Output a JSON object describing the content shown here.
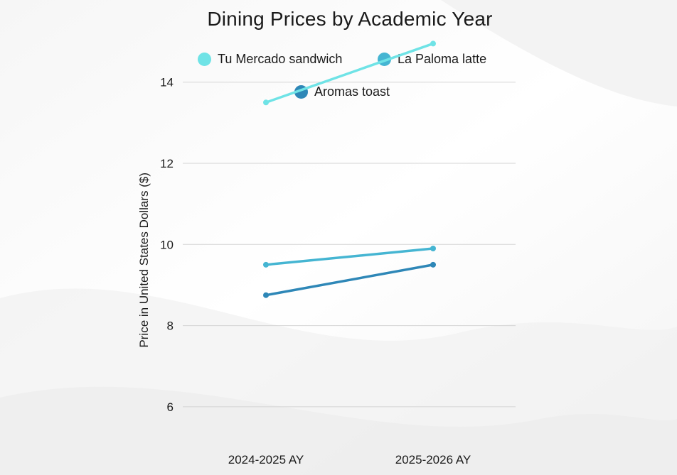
{
  "chart_data": {
    "type": "line",
    "title": "Dining Prices by Academic Year",
    "xlabel": "",
    "ylabel": "Price in United States Dollars ($)",
    "categories": [
      "2024-2025 AY",
      "2025-2026 AY"
    ],
    "ylim": [
      5,
      15.5
    ],
    "yticks": [
      6,
      8,
      10,
      12,
      14
    ],
    "grid": true,
    "legend_position": "top",
    "series": [
      {
        "name": "Tu Mercado sandwich",
        "values": [
          13.5,
          14.95
        ],
        "color": "#6fe3e6"
      },
      {
        "name": "La Paloma latte",
        "values": [
          9.5,
          9.9
        ],
        "color": "#45b5d2"
      },
      {
        "name": "Aromas toast",
        "values": [
          8.75,
          9.5
        ],
        "color": "#2e87b7"
      }
    ]
  },
  "colors": {
    "gridline": "#d4d4d4",
    "text": "#1a1a1a",
    "background": "#ffffff"
  }
}
